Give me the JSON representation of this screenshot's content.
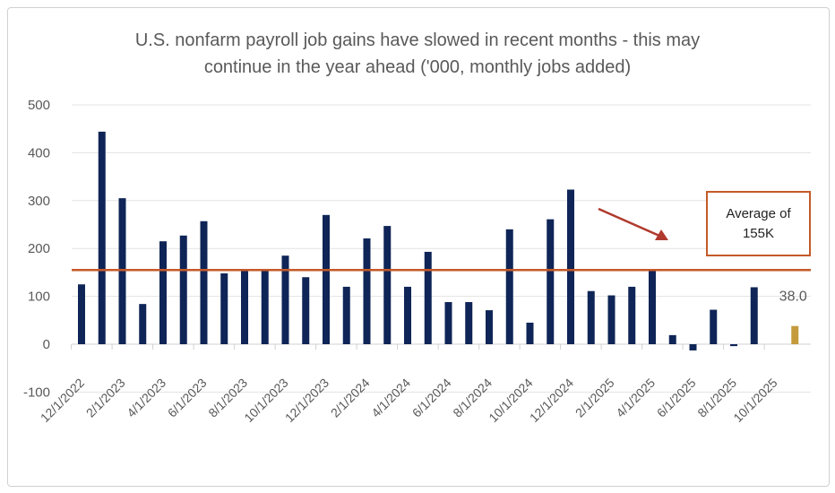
{
  "chart_data": {
    "type": "bar",
    "title_line1": "U.S. nonfarm payroll job gains have slowed in recent months - this may",
    "title_line2": "continue in the year ahead ('000, monthly jobs added)",
    "ylim": [
      -100,
      500
    ],
    "yticks": [
      "-100",
      "0",
      "100",
      "200",
      "300",
      "400",
      "500"
    ],
    "ytick_values": [
      -100,
      0,
      100,
      200,
      300,
      400,
      500
    ],
    "xtick_labels": [
      "12/1/2022",
      "2/1/2023",
      "4/1/2023",
      "6/1/2023",
      "8/1/2023",
      "10/1/2023",
      "12/1/2023",
      "2/1/2024",
      "4/1/2024",
      "6/1/2024",
      "8/1/2024",
      "10/1/2024",
      "12/1/2024",
      "2/1/2025",
      "4/1/2025",
      "6/1/2025",
      "8/1/2025",
      "10/1/2025"
    ],
    "values": [
      125,
      444,
      305,
      84,
      215,
      227,
      257,
      148,
      154,
      155,
      185,
      140,
      270,
      120,
      221,
      247,
      120,
      193,
      88,
      88,
      71,
      240,
      45,
      261,
      323,
      111,
      102,
      120,
      155,
      19,
      -13,
      72,
      -4,
      119,
      null,
      38
    ],
    "highlight_index": 35,
    "highlight_label": "38.0",
    "average": 155,
    "annotation_line1": "Average of",
    "annotation_line2": "155K",
    "colors": {
      "bar": "#0f2557",
      "highlight": "#c49a3c",
      "average": "#c55a28",
      "arrow": "#b03a2e"
    }
  }
}
